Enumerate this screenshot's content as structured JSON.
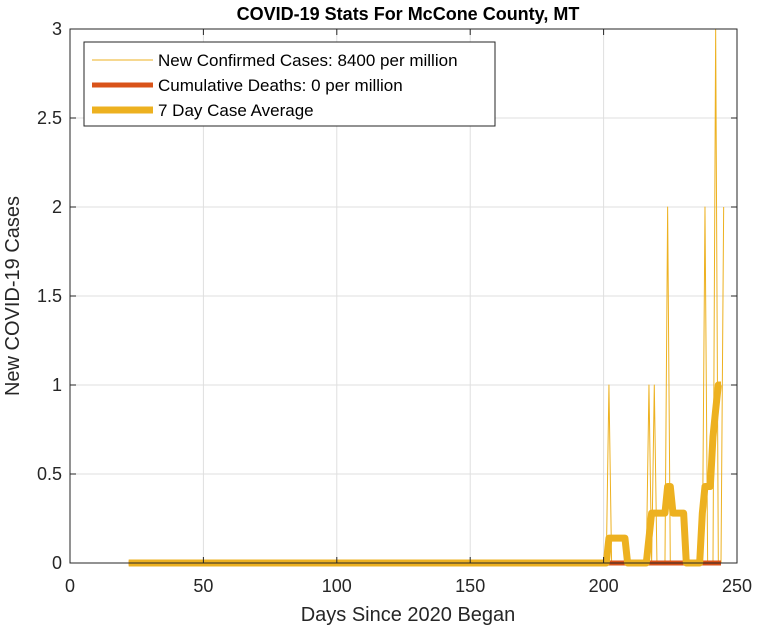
{
  "chart_data": {
    "type": "line",
    "title": "COVID-19 Stats For McCone County, MT",
    "xlabel": "Days Since 2020 Began",
    "ylabel": "New COVID-19 Cases",
    "xlim": [
      0,
      250
    ],
    "ylim": [
      0,
      3
    ],
    "xticks": [
      0,
      50,
      100,
      150,
      200,
      250
    ],
    "yticks": [
      0,
      0.5,
      1,
      1.5,
      2,
      2.5,
      3
    ],
    "xtick_labels": [
      "0",
      "50",
      "100",
      "150",
      "200",
      "250"
    ],
    "ytick_labels": [
      "0",
      "0.5",
      "1",
      "1.5",
      "2",
      "2.5",
      "3"
    ],
    "grid": true,
    "legend_position": "top-left",
    "series": [
      {
        "name": "New Confirmed Cases: 8400 per million",
        "color": "#EDB120",
        "line_width": 1,
        "x": [
          22,
          201,
          202,
          203,
          216,
          217,
          218,
          219,
          220,
          223,
          224,
          225,
          237,
          238,
          239,
          241,
          242,
          243,
          244,
          245
        ],
        "y": [
          0,
          0,
          1,
          0,
          0,
          1,
          0,
          1,
          0,
          0,
          2,
          0,
          0,
          2,
          0,
          0,
          3,
          0,
          0,
          2
        ]
      },
      {
        "name": "Cumulative Deaths: 0 per million",
        "color": "#D95319",
        "line_width": 5,
        "x": [
          22,
          244
        ],
        "y": [
          0,
          0
        ]
      },
      {
        "name": "7 Day Case Average",
        "color": "#EDB120",
        "line_width": 7,
        "x": [
          22,
          200,
          201,
          202,
          208,
          209,
          214,
          215,
          216,
          217,
          218,
          222,
          223,
          224,
          225,
          226,
          230,
          231,
          234,
          235,
          236,
          237,
          238,
          239,
          240,
          241,
          242,
          243,
          244
        ],
        "y": [
          0,
          0,
          0,
          0.14,
          0.14,
          0,
          0,
          0,
          0,
          0.14,
          0.28,
          0.28,
          0.28,
          0.43,
          0.43,
          0.28,
          0.28,
          0,
          0,
          0,
          0,
          0.28,
          0.43,
          0.43,
          0.43,
          0.71,
          0.86,
          1.0,
          1.0
        ]
      }
    ]
  }
}
